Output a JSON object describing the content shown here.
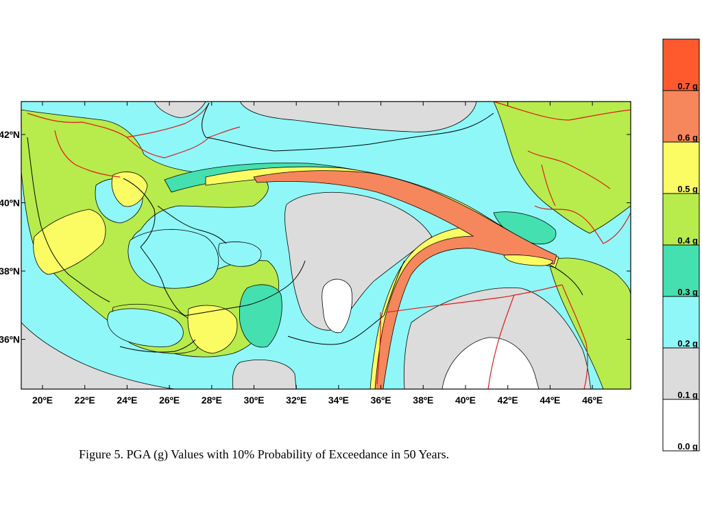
{
  "caption": "Figure 5. PGA (g) Values with 10% Probability of Exceedance in 50 Years.",
  "axes": {
    "longitude_labels": [
      "20ºE",
      "22ºE",
      "24ºE",
      "26ºE",
      "28ºE",
      "30ºE",
      "32ºE",
      "34ºE",
      "36ºE",
      "38ºE",
      "40ºE",
      "42ºE",
      "44ºE",
      "46ºE"
    ],
    "latitude_labels": [
      "42ºN",
      "40ºN",
      "38ºN",
      "36ºN"
    ]
  },
  "legend": {
    "labels": [
      "0.0 g",
      "0.1 g",
      "0.2 g",
      "0.3 g",
      "0.4 g",
      "0.5 g",
      "0.6 g",
      "0.7 g"
    ],
    "bins": [
      {
        "range": "0.0-0.1 g",
        "color": "#ffffff"
      },
      {
        "range": "0.1-0.2 g",
        "color": "#dcdcdc"
      },
      {
        "range": "0.2-0.3 g",
        "color": "#8ff7f7"
      },
      {
        "range": "0.3-0.4 g",
        "color": "#45e0b0"
      },
      {
        "range": "0.4-0.5 g",
        "color": "#b7ec4c"
      },
      {
        "range": "0.5-0.6 g",
        "color": "#fbfb63"
      },
      {
        "range": "0.6-0.7 g",
        "color": "#f6865c"
      },
      {
        "range": ">0.7 g",
        "color": "#ff5a2e"
      }
    ]
  },
  "colors": {
    "coastline": "#000000",
    "borders": "#e01818",
    "frame": "#000000"
  }
}
